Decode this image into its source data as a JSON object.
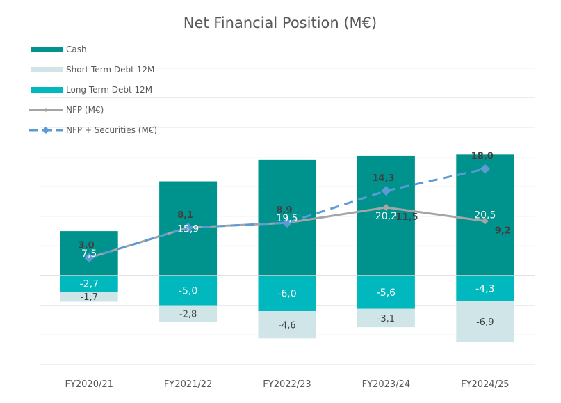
{
  "chart_data": {
    "type": "bar",
    "title": "Net Financial Position (M€)",
    "xlabel": "",
    "ylabel": "",
    "ylim": [
      -15,
      35
    ],
    "ytick_step": 5,
    "grid": true,
    "y_axis_labels_visible": false,
    "legend_position": "top-left",
    "categories": [
      "FY2020/21",
      "FY2021/22",
      "FY2022/23",
      "FY2023/24",
      "FY2024/25"
    ],
    "series": [
      {
        "name": "Cash",
        "kind": "bar",
        "color": "#00938E",
        "label_color": "#ffffff",
        "values": [
          7.5,
          15.9,
          19.5,
          20.2,
          20.5
        ],
        "labels": [
          "7,5",
          "15,9",
          "19,5",
          "20,2",
          "20,5"
        ]
      },
      {
        "name": "Short Term Debt 12M",
        "kind": "bar",
        "color": "#D0E5E7",
        "label_color": "#404040",
        "values": [
          -1.7,
          -2.8,
          -4.6,
          -3.1,
          -6.9
        ],
        "labels": [
          "-1,7",
          "-2,8",
          "-4,6",
          "-3,1",
          "-6,9"
        ]
      },
      {
        "name": "Long Term Debt 12M",
        "kind": "bar",
        "color": "#00B8BE",
        "label_color": "#ffffff",
        "values": [
          -2.7,
          -5.0,
          -6.0,
          -5.6,
          -4.3
        ],
        "labels": [
          "-2,7",
          "-5,0",
          "-6,0",
          "-5,6",
          "-4,3"
        ]
      },
      {
        "name": "NFP (M€)",
        "kind": "line",
        "color": "#A5A5A5",
        "dashed": false,
        "marker": "diamond",
        "values": [
          3.0,
          8.1,
          8.9,
          11.5,
          9.2
        ],
        "labels": [
          "",
          "",
          "",
          "11,5",
          "9,2"
        ]
      },
      {
        "name": "NFP + Securities (M€)",
        "kind": "line",
        "color": "#5B9BD5",
        "dashed": true,
        "marker": "diamond",
        "values": [
          3.0,
          8.1,
          8.9,
          14.3,
          18.0
        ],
        "labels": [
          "3,0",
          "8,1",
          "8,9",
          "14,3",
          "18,0"
        ]
      }
    ]
  }
}
